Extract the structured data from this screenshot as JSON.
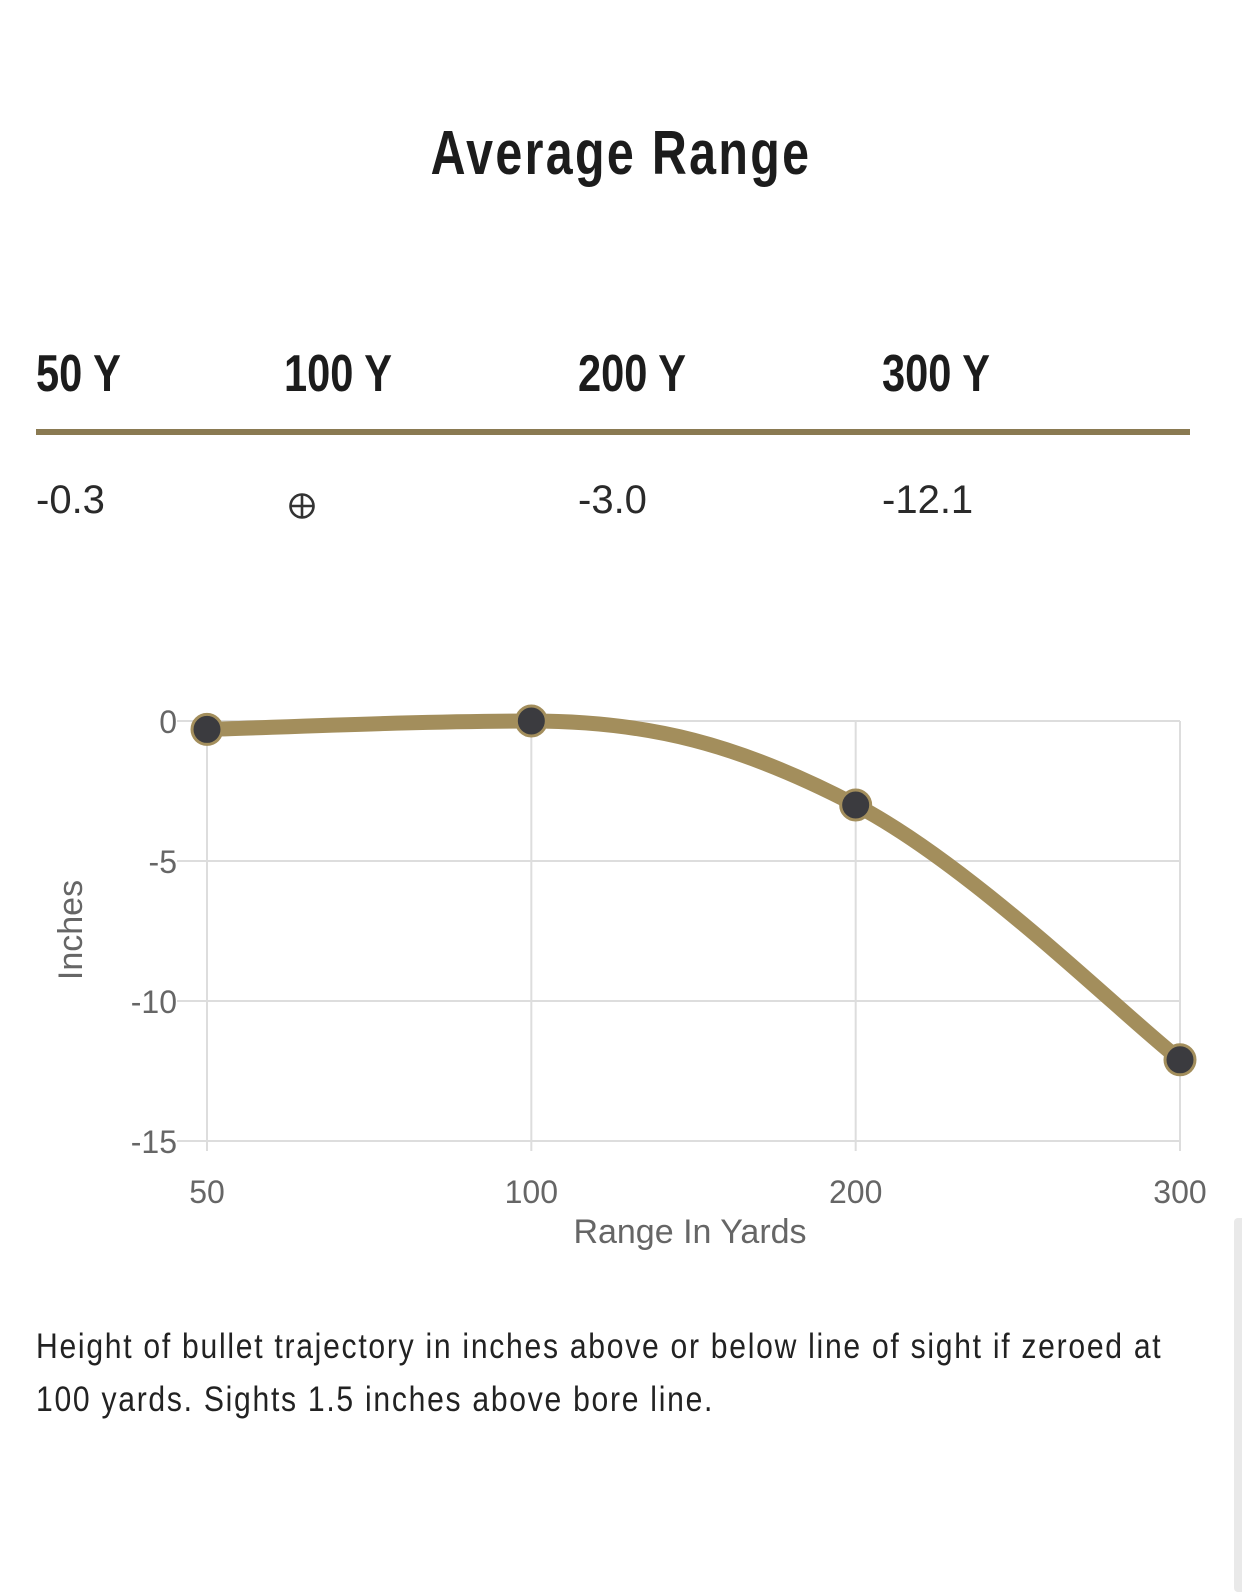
{
  "title": "Average Range",
  "table": {
    "headers": [
      "50 Y",
      "100 Y",
      "200 Y",
      "300 Y"
    ],
    "values": [
      "-0.3",
      "",
      "-3.0",
      "-12.1"
    ],
    "zero_icon": "crosshair-icon"
  },
  "colors": {
    "accent": "#a38e5c",
    "rule": "#8a7a52",
    "point": "#3b3b3f",
    "grid": "#dddddd"
  },
  "chart_data": {
    "type": "line",
    "x": [
      50,
      100,
      200,
      300
    ],
    "series": [
      {
        "values": [
          -0.3,
          0,
          -3.0,
          -12.1
        ]
      }
    ],
    "xticks": [
      "50",
      "100",
      "200",
      "300"
    ],
    "yticks": [
      "0",
      "-5",
      "-10",
      "-15"
    ],
    "ytick_values": [
      0,
      -5,
      -10,
      -15
    ],
    "xlabel": "Range In Yards",
    "ylabel": "Inches",
    "ylim": [
      -15,
      0
    ],
    "grid": true,
    "legend": "none"
  },
  "footnote": "Height of bullet trajectory in inches above or below line of sight if zeroed at 100 yards. Sights 1.5 inches above bore line."
}
